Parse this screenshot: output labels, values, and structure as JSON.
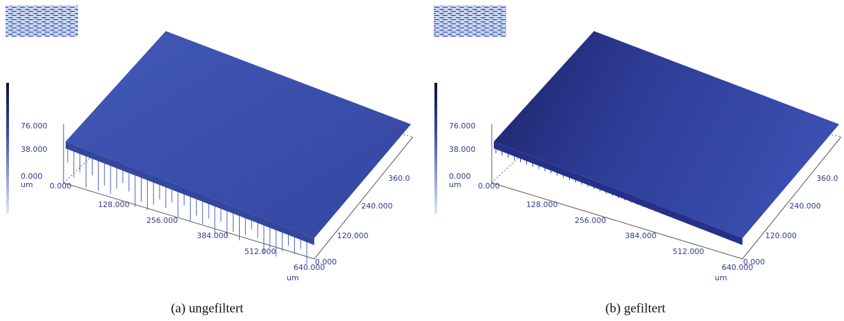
{
  "panels": [
    {
      "caption": "(a) ungefiltert",
      "z_ticks": [
        "76.000",
        "38.000",
        "0.000"
      ],
      "z_unit": "um",
      "x_ticks": [
        "0.000",
        "128.000",
        "256.000",
        "384.000",
        "512.000",
        "640.000"
      ],
      "x_unit": "um",
      "y_ticks": [
        "0.000",
        "120.000",
        "240.000",
        "360.0"
      ]
    },
    {
      "caption": "(b) gefiltert",
      "z_ticks": [
        "76.000",
        "38.000",
        "0.000"
      ],
      "z_unit": "um",
      "x_ticks": [
        "0.000",
        "128.000",
        "256.000",
        "384.000",
        "512.000",
        "640.000"
      ],
      "x_unit": "um",
      "y_ticks": [
        "0.000",
        "120.000",
        "240.000",
        "360.0"
      ]
    }
  ]
}
